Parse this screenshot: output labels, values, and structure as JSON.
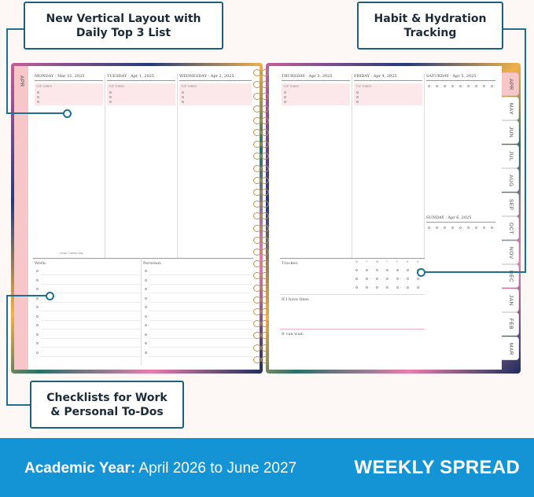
{
  "callouts": {
    "vertical_layout": "New Vertical Layout with\nDaily Top 3 List",
    "habit_tracking": "Habit & Hydration\nTracking",
    "checklists": "Checklists for Work\n& Personal To-Dos"
  },
  "left_page": {
    "tab": "APR",
    "days": [
      {
        "label": "MONDAY · Mar 31, 2025"
      },
      {
        "label": "TUESDAY · Apr 1, 2025"
      },
      {
        "label": "WEDNESDAY · Apr 2, 2025"
      }
    ],
    "top_three_label": "TOP THREE:",
    "holiday_note": "César Chávez Day",
    "work_label": "Work:",
    "personal_label": "Personal:"
  },
  "right_page": {
    "days": [
      {
        "label": "THURSDAY · Apr 3, 2025"
      },
      {
        "label": "FRIDAY · Apr 4, 2025"
      },
      {
        "label": "SATURDAY · Apr 5, 2025"
      }
    ],
    "sunday_label": "SUNDAY · Apr 6, 2025",
    "top_three_label": "TOP THREE:",
    "tracker_label": "Tracker:",
    "weekdays": [
      "M",
      "T",
      "W",
      "T",
      "F",
      "S",
      "S"
    ],
    "if_i_have_time": "If I have time:",
    "i_can_wait": "It can wait:",
    "month_tabs": [
      "APR",
      "MAY",
      "JUN",
      "JUL",
      "AUG",
      "SEP",
      "OCT",
      "NOV",
      "DEC",
      "JAN",
      "FEB",
      "MAR"
    ]
  },
  "banner": {
    "academic_label": "Academic Year:",
    "academic_range": "April 2026 to June 2027",
    "spread_label": "WEEKLY SPREAD"
  },
  "colors": {
    "banner": "#1594d5",
    "callout_border": "#1f5f7a",
    "tab_pink": "#f6c6c9"
  }
}
